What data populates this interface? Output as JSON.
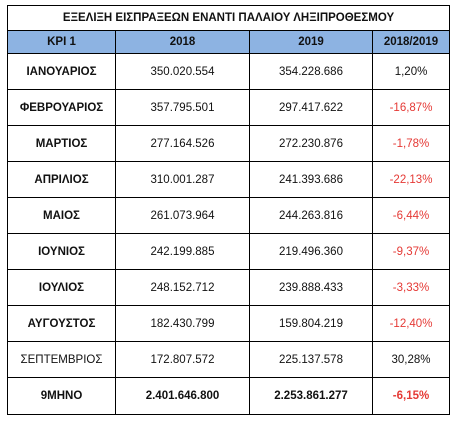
{
  "title": "ΕΞΕΛΙΞΗ ΕΙΣΠΡΑΞΕΩΝ ΕΝΑΝΤΙ ΠΑΛΑΙΟΥ ΛΗΞΙΠΡΟΘΕΣΜΟΥ",
  "columns": [
    "KPI 1",
    "2018",
    "2019",
    "2018/2019"
  ],
  "rows": [
    {
      "month": "ΙΑΝΟΥΑΡΙΟΣ",
      "y2018": "350.020.554",
      "y2019": "354.228.686",
      "change": "1,20%",
      "change_color": "#111111",
      "month_bold": true
    },
    {
      "month": "ΦΕΒΡΟΥΑΡΙΟΣ",
      "y2018": "357.795.501",
      "y2019": "297.417.622",
      "change": "-16,87%",
      "change_color": "#e53935",
      "month_bold": true
    },
    {
      "month": "ΜΑΡΤΙΟΣ",
      "y2018": "277.164.526",
      "y2019": "272.230.876",
      "change": "-1,78%",
      "change_color": "#e53935",
      "month_bold": true
    },
    {
      "month": "ΑΠΡΙΛΙΟΣ",
      "y2018": "310.001.287",
      "y2019": "241.393.686",
      "change": "-22,13%",
      "change_color": "#e53935",
      "month_bold": true
    },
    {
      "month": "ΜΑΙΟΣ",
      "y2018": "261.073.964",
      "y2019": "244.263.816",
      "change": "-6,44%",
      "change_color": "#e53935",
      "month_bold": true
    },
    {
      "month": "ΙΟΥΝΙΟΣ",
      "y2018": "242.199.885",
      "y2019": "219.496.360",
      "change": "-9,37%",
      "change_color": "#e53935",
      "month_bold": true
    },
    {
      "month": "ΙΟΥΛΙΟΣ",
      "y2018": "248.152.712",
      "y2019": "239.888.433",
      "change": "-3,33%",
      "change_color": "#e53935",
      "month_bold": true
    },
    {
      "month": "ΑΥΓΟΥΣΤΟΣ",
      "y2018": "182.430.799",
      "y2019": "159.804.219",
      "change": "-12,40%",
      "change_color": "#e53935",
      "month_bold": true
    },
    {
      "month": "ΣΕΠΤΕΜΒΡΙΟΣ",
      "y2018": "172.807.572",
      "y2019": "225.137.578",
      "change": "30,28%",
      "change_color": "#111111",
      "month_bold": false
    }
  ],
  "total": {
    "label": "9ΜΗΝΟ",
    "y2018": "2.401.646.800",
    "y2019": "2.253.861.277",
    "change": "-6,15%",
    "change_color": "#e53935"
  },
  "colors": {
    "header_bg": "#8db3e2",
    "negative": "#e53935"
  }
}
